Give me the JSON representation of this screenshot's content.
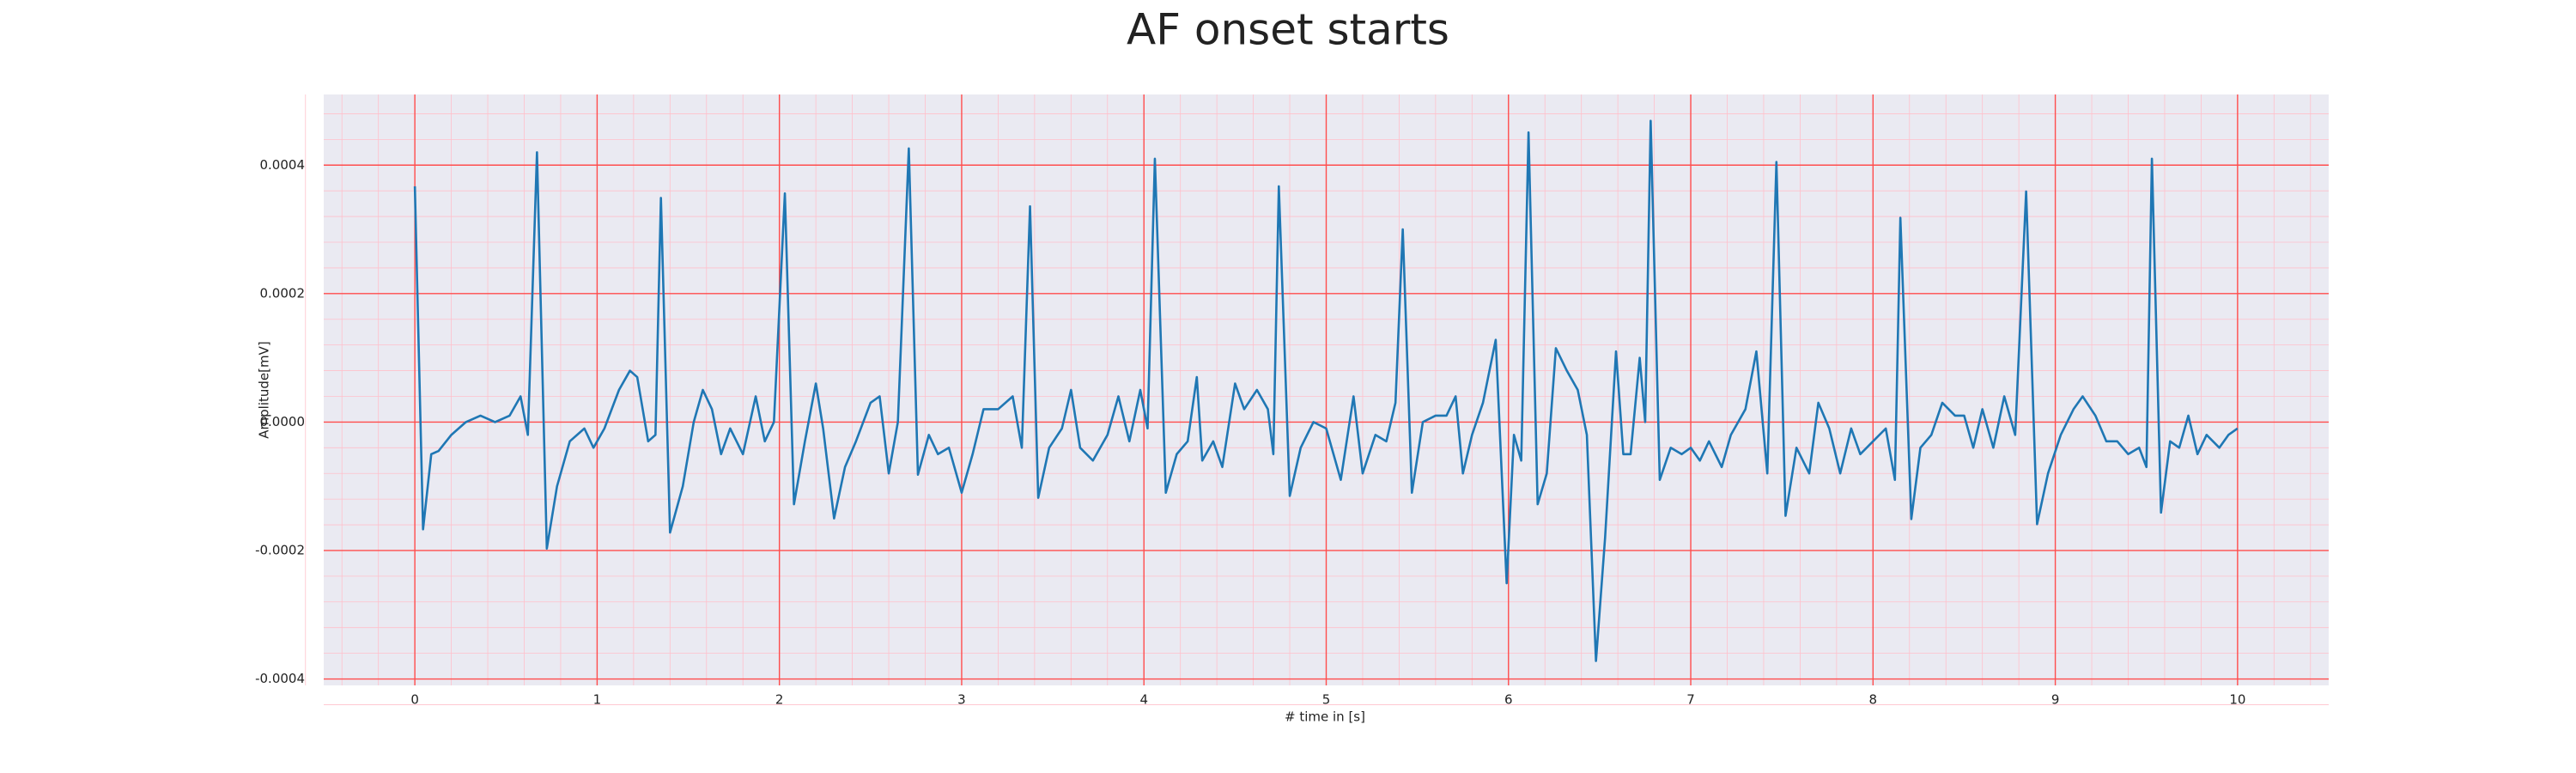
{
  "chart_data": {
    "type": "line",
    "title": "AF onset starts",
    "xlabel": "# time in [s]",
    "ylabel": "Amplitude[mV]",
    "color": "#1f77b4",
    "background": "#eaeaf2",
    "grid": true,
    "grid_color": "#ff4d4d",
    "minor_grid": true,
    "minor_grid_color": "#ffc0cb",
    "xlim": [
      -0.5,
      10.5
    ],
    "xticks": [
      0,
      1,
      2,
      3,
      4,
      5,
      6,
      7,
      8,
      9,
      10
    ],
    "ylim": [
      -0.00041,
      0.00051
    ],
    "yticks": [
      -0.0004,
      -0.0002,
      {
        "value": 0,
        "label": "0.0000"
      },
      0.0002,
      0.0004
    ],
    "x": [
      0,
      0.045,
      0.09,
      0.13,
      0.2,
      0.28,
      0.36,
      0.44,
      0.52,
      0.58,
      0.62,
      0.67,
      0.724,
      0.78,
      0.85,
      0.93,
      0.98,
      1.04,
      1.12,
      1.18,
      1.22,
      1.28,
      1.32,
      1.35,
      1.4,
      1.47,
      1.53,
      1.58,
      1.63,
      1.68,
      1.73,
      1.8,
      1.87,
      1.92,
      1.97,
      2.03,
      2.08,
      2.14,
      2.2,
      2.24,
      2.3,
      2.36,
      2.42,
      2.5,
      2.55,
      2.6,
      2.65,
      2.71,
      2.76,
      2.82,
      2.87,
      2.93,
      3.0,
      3.06,
      3.12,
      3.2,
      3.28,
      3.33,
      3.375,
      3.42,
      3.48,
      3.55,
      3.6,
      3.65,
      3.72,
      3.8,
      3.86,
      3.92,
      3.98,
      4.02,
      4.06,
      4.12,
      4.18,
      4.24,
      4.29,
      4.32,
      4.38,
      4.43,
      4.5,
      4.55,
      4.62,
      4.68,
      4.71,
      4.74,
      4.8,
      4.86,
      4.93,
      5.0,
      5.04,
      5.08,
      5.15,
      5.2,
      5.27,
      5.33,
      5.38,
      5.42,
      5.47,
      5.53,
      5.6,
      5.66,
      5.71,
      5.75,
      5.8,
      5.86,
      5.93,
      5.99,
      6.03,
      6.07,
      6.11,
      6.16,
      6.21,
      6.26,
      6.32,
      6.38,
      6.43,
      6.48,
      6.53,
      6.59,
      6.63,
      6.67,
      6.72,
      6.75,
      6.78,
      6.83,
      6.89,
      6.95,
      7.0,
      7.05,
      7.1,
      7.17,
      7.22,
      7.3,
      7.36,
      7.42,
      7.47,
      7.52,
      7.58,
      7.65,
      7.7,
      7.76,
      7.82,
      7.88,
      7.93,
      8.0,
      8.07,
      8.12,
      8.15,
      8.21,
      8.26,
      8.32,
      8.38,
      8.45,
      8.5,
      8.55,
      8.6,
      8.66,
      8.72,
      8.78,
      8.84,
      8.9,
      8.96,
      9.03,
      9.1,
      9.15,
      9.22,
      9.28,
      9.34,
      9.4,
      9.46,
      9.5,
      9.53,
      9.58,
      9.63,
      9.68,
      9.73,
      9.78,
      9.83,
      9.9,
      9.95,
      10.0
    ],
    "values": [
      0.000367,
      -0.000167,
      -5e-05,
      -4.5e-05,
      -2e-05,
      0.0,
      1e-05,
      0.0,
      1e-05,
      4e-05,
      -2e-05,
      0.00042,
      -0.000197,
      -0.0001,
      -3e-05,
      -1e-05,
      -4e-05,
      -1e-05,
      5e-05,
      8e-05,
      7e-05,
      -3e-05,
      -2e-05,
      0.000349,
      -0.000172,
      -0.0001,
      0.0,
      5e-05,
      2e-05,
      -5e-05,
      -1e-05,
      -5e-05,
      4e-05,
      -3e-05,
      0.0,
      0.000356,
      -0.000128,
      -3e-05,
      6e-05,
      -1e-05,
      -0.00015,
      -7e-05,
      -3e-05,
      3e-05,
      4e-05,
      -8e-05,
      0.0,
      0.000426,
      -8.2e-05,
      -2e-05,
      -5e-05,
      -4e-05,
      -0.00011,
      -5e-05,
      2e-05,
      2e-05,
      4e-05,
      -4e-05,
      0.000336,
      -0.000118,
      -4e-05,
      -1e-05,
      5e-05,
      -4e-05,
      -6e-05,
      -2e-05,
      4e-05,
      -3e-05,
      5e-05,
      -1e-05,
      0.00041,
      -0.00011,
      -5e-05,
      -3e-05,
      7e-05,
      -6e-05,
      -3e-05,
      -7e-05,
      6e-05,
      2e-05,
      5e-05,
      2e-05,
      -5e-05,
      0.000367,
      -0.000115,
      -4e-05,
      0.0,
      -1e-05,
      -5e-05,
      -9e-05,
      4e-05,
      -8e-05,
      -2e-05,
      -3e-05,
      3e-05,
      0.0003,
      -0.00011,
      0.0,
      1e-05,
      1e-05,
      4e-05,
      -8e-05,
      -2e-05,
      3e-05,
      0.000128,
      -0.000251,
      -2e-05,
      -6e-05,
      0.000451,
      -0.000128,
      -8e-05,
      0.000115,
      8e-05,
      5e-05,
      -2e-05,
      -0.000372,
      -0.00018,
      0.00011,
      -5e-05,
      -5e-05,
      0.0001,
      0.0,
      0.000469,
      -9e-05,
      -4e-05,
      -5e-05,
      -4e-05,
      -6e-05,
      -3e-05,
      -7e-05,
      -2e-05,
      2e-05,
      0.00011,
      -8e-05,
      0.000405,
      -0.000146,
      -4e-05,
      -8e-05,
      3e-05,
      -1e-05,
      -8e-05,
      -1e-05,
      -5e-05,
      -3e-05,
      -1e-05,
      -9e-05,
      0.000318,
      -0.000151,
      -4e-05,
      -2e-05,
      3e-05,
      1e-05,
      1e-05,
      -4e-05,
      2e-05,
      -4e-05,
      4e-05,
      -2e-05,
      0.000359,
      -0.000159,
      -8e-05,
      -2e-05,
      2e-05,
      4e-05,
      1e-05,
      -3e-05,
      -3e-05,
      -5e-05,
      -4e-05,
      -7e-05,
      0.00041,
      -0.000141,
      -3e-05,
      -4e-05,
      1e-05,
      -5e-05,
      -2e-05,
      -4e-05,
      -2e-05,
      -1e-05
    ]
  }
}
